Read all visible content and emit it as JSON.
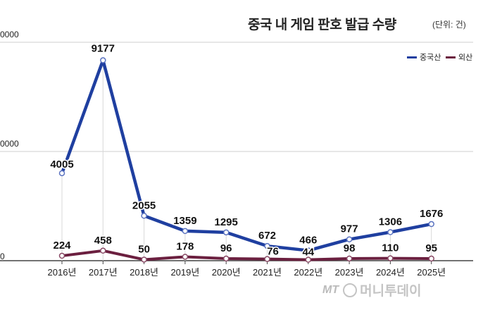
{
  "header": {
    "title": "중국 내 게임 판호 발급 수량",
    "unit": "(단위: 건)"
  },
  "watermark": {
    "mark": "MT",
    "brand": "머니투데이"
  },
  "colors": {
    "domestic": "#1f3fa0",
    "foreign": "#6b1f3f",
    "grid": "#cfcfcf",
    "axis": "#444444"
  },
  "chart_data": {
    "type": "line",
    "title": "중국 내 게임 판호 발급 수량",
    "unit": "(단위: 건)",
    "categories": [
      "2016년",
      "2017년",
      "2018년",
      "2019년",
      "2020년",
      "2021년",
      "2022년",
      "2023년",
      "2024년",
      "2025년"
    ],
    "series": [
      {
        "name": "중국산",
        "color": "#1f3fa0",
        "values": [
          4005,
          9177,
          2055,
          1359,
          1295,
          672,
          466,
          977,
          1306,
          1676
        ]
      },
      {
        "name": "외산",
        "color": "#6b1f3f",
        "values": [
          224,
          458,
          50,
          178,
          96,
          76,
          44,
          98,
          110,
          95
        ]
      }
    ],
    "yticks": [
      "0000",
      "0000",
      "0"
    ],
    "ylim": [
      0,
      10000
    ],
    "grid": true,
    "legend_position": "top-right"
  }
}
